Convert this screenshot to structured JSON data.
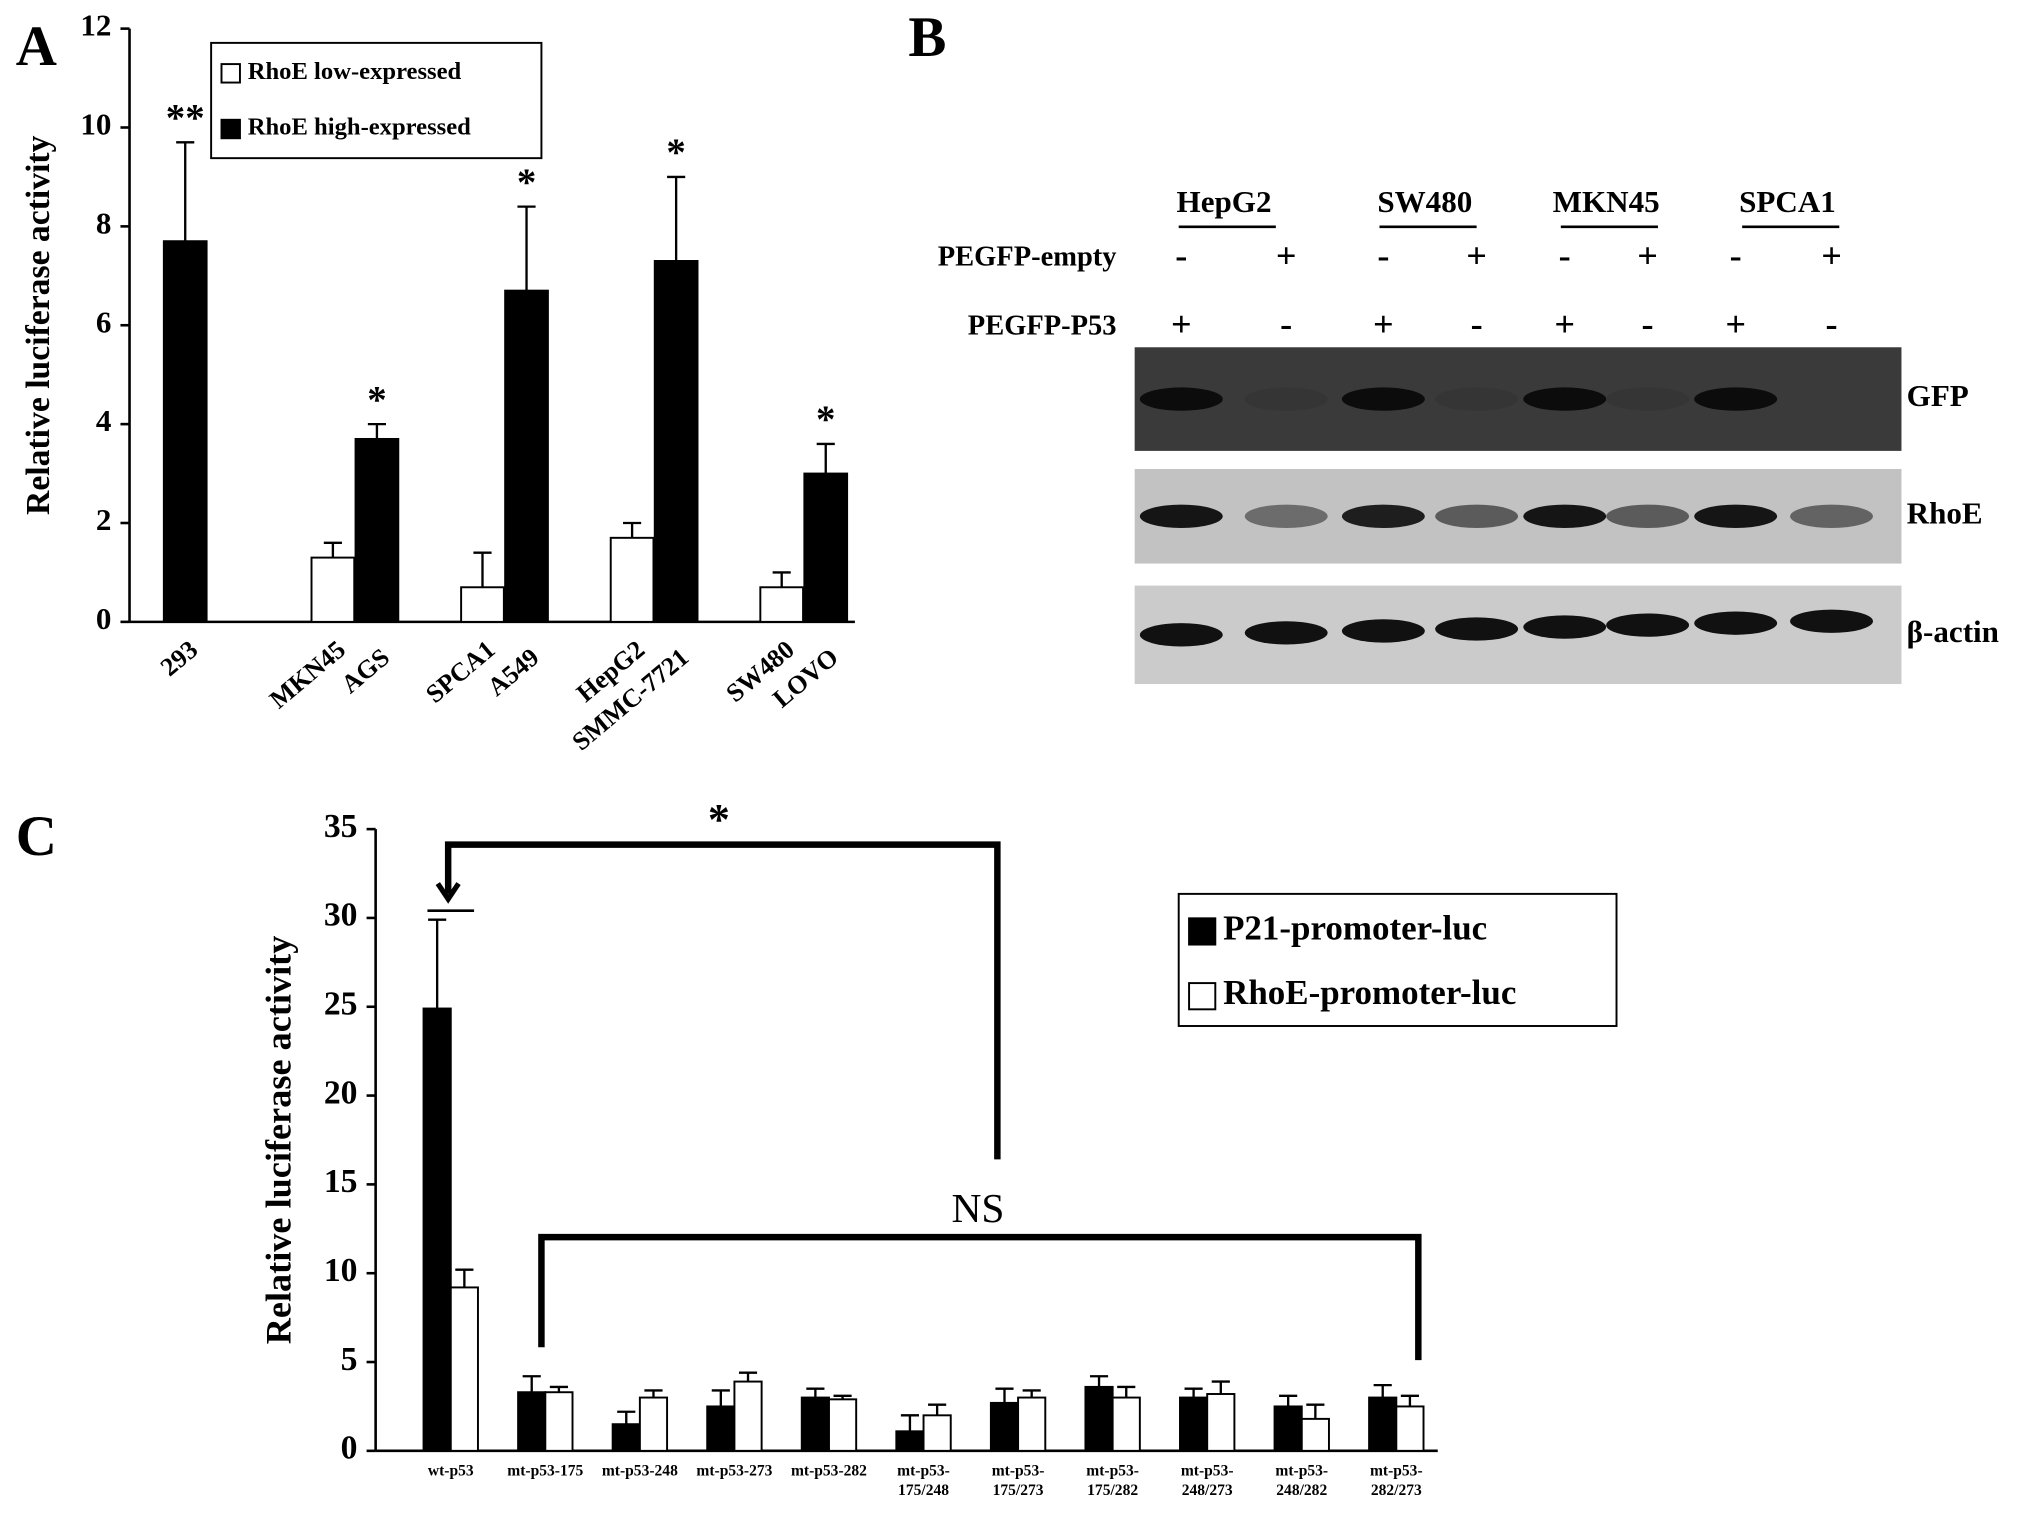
{
  "chart_data": [
    {
      "type": "bar",
      "panel_label": "A",
      "y_label": "Relative luciferase activity",
      "categories": [
        "293",
        "MKN45",
        "AGS",
        "SPCA1",
        "A549",
        "HepG2",
        "SMMC-7721",
        "SW480",
        "LOVO"
      ],
      "series": [
        {
          "name": "RhoE low-expressed",
          "color": "#ffffff",
          "values": [
            null,
            1.3,
            null,
            0.7,
            null,
            1.7,
            null,
            0.7,
            null
          ],
          "errors": [
            null,
            0.3,
            null,
            0.7,
            null,
            0.3,
            null,
            0.3,
            null
          ]
        },
        {
          "name": "RhoE high-expressed",
          "color": "#000000",
          "values": [
            7.7,
            null,
            3.7,
            null,
            6.7,
            null,
            7.3,
            null,
            3.0
          ],
          "errors": [
            2.0,
            null,
            0.3,
            null,
            1.7,
            null,
            1.7,
            null,
            0.6
          ],
          "annotations": [
            "**",
            null,
            "*",
            null,
            "*",
            null,
            "*",
            null,
            "*"
          ]
        }
      ],
      "ylim": [
        0,
        12
      ],
      "yticks": [
        0,
        2,
        4,
        6,
        8,
        10,
        12
      ]
    },
    {
      "type": "grouped_bar",
      "panel_label": "C",
      "y_label": "Relative luciferase activity",
      "categories": [
        "wt-p53",
        "mt-p53-175",
        "mt-p53-248",
        "mt-p53-273",
        "mt-p53-282",
        "mt-p53-175/248",
        "mt-p53-175/273",
        "mt-p53-175/282",
        "mt-p53-248/273",
        "mt-p53-248/282",
        "mt-p53-282/273"
      ],
      "series": [
        {
          "name": "P21-promoter-luc",
          "color": "#000000",
          "values": [
            24.9,
            3.3,
            1.5,
            2.5,
            3.0,
            1.1,
            2.7,
            3.6,
            3.0,
            2.5,
            3.0
          ],
          "errors": [
            5.0,
            0.9,
            0.7,
            0.9,
            0.5,
            0.9,
            0.8,
            0.6,
            0.5,
            0.6,
            0.7
          ]
        },
        {
          "name": "RhoE-promoter-luc",
          "color": "#ffffff",
          "values": [
            9.2,
            3.3,
            3.0,
            3.9,
            2.9,
            2.0,
            3.0,
            3.0,
            3.2,
            1.8,
            2.5
          ],
          "errors": [
            1.0,
            0.3,
            0.4,
            0.5,
            0.2,
            0.6,
            0.4,
            0.6,
            0.7,
            0.8,
            0.6
          ]
        }
      ],
      "ylim": [
        0,
        35
      ],
      "yticks": [
        0,
        5,
        10,
        15,
        20,
        25,
        30,
        35
      ],
      "annotations": [
        "*",
        "NS"
      ]
    }
  ],
  "blot": {
    "panel_label": "B",
    "cell_lines": [
      "HepG2",
      "SW480",
      "MKN45",
      "SPCA1"
    ],
    "rows": [
      {
        "label": "PEGFP-empty",
        "signs": [
          "-",
          "+",
          "-",
          "+",
          "-",
          "+",
          "-",
          "+"
        ]
      },
      {
        "label": "PEGFP-P53",
        "signs": [
          "+",
          "-",
          "+",
          "-",
          "+",
          "-",
          "+",
          "-"
        ]
      }
    ],
    "bands": [
      "GFP",
      "RhoE",
      "β-actin"
    ]
  }
}
